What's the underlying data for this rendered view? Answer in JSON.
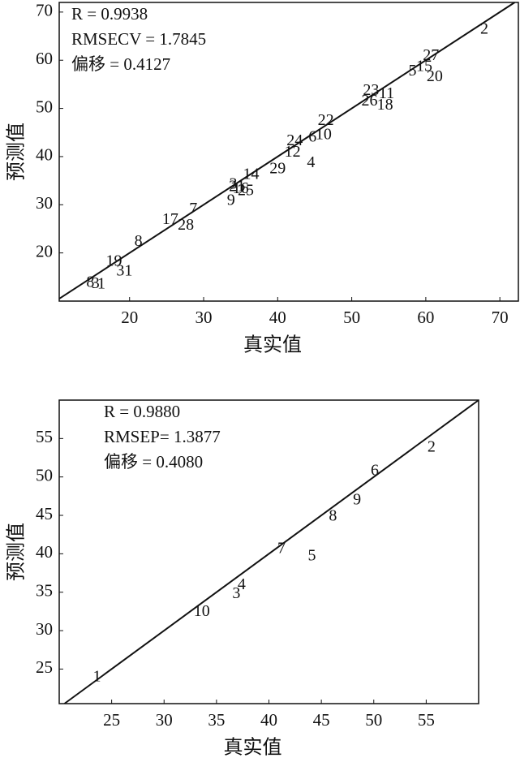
{
  "chart_data": [
    {
      "type": "scatter",
      "xlabel": "真实值",
      "ylabel": "预测值",
      "annotations": [
        "R = 0.9938",
        "RMSECV = 1.7845",
        "偏移 = 0.4127"
      ],
      "xlim": [
        10.5,
        72.5
      ],
      "ylim": [
        10,
        72
      ],
      "xticks": [
        20,
        30,
        40,
        50,
        60,
        70
      ],
      "yticks": [
        20,
        30,
        40,
        50,
        60,
        70
      ],
      "series": [
        {
          "color": "#111",
          "labels": [
            "2",
            "27",
            "15",
            "5",
            "20",
            "23",
            "11",
            "26",
            "18",
            "22",
            "10",
            "6",
            "24",
            "12",
            "4",
            "29",
            "14",
            "3",
            "21",
            "16",
            "25",
            "9",
            "7",
            "17",
            "28",
            "8",
            "19",
            "31",
            "8",
            "3",
            "1"
          ],
          "x": [
            67.9,
            60.7,
            59.8,
            58.2,
            61.2,
            52.6,
            54.7,
            52.4,
            54.5,
            46.5,
            46.2,
            44.7,
            42.3,
            42.0,
            44.5,
            40.0,
            36.4,
            34.0,
            34.5,
            35.0,
            35.7,
            33.7,
            28.6,
            25.5,
            27.6,
            21.2,
            17.9,
            19.3,
            14.7,
            15.4,
            16.2
          ],
          "values": [
            66.3,
            60.8,
            58.5,
            57.6,
            56.4,
            53.6,
            52.9,
            51.4,
            50.5,
            47.3,
            44.4,
            43.9,
            43.1,
            40.8,
            38.6,
            37.3,
            36.1,
            34.1,
            33.6,
            33.2,
            32.8,
            30.7,
            29.0,
            26.8,
            25.6,
            22.2,
            18.1,
            16.1,
            13.7,
            13.5,
            13.4
          ]
        }
      ]
    },
    {
      "type": "scatter",
      "xlabel": "真实值",
      "ylabel": "预测值",
      "annotations": [
        "R = 0.9880",
        "RMSEP= 1.3877",
        "偏移 = 0.4080"
      ],
      "xlim": [
        20,
        60
      ],
      "ylim": [
        20.5,
        60
      ],
      "xticks": [
        25,
        30,
        35,
        40,
        45,
        50,
        55
      ],
      "yticks": [
        25,
        30,
        35,
        40,
        45,
        50,
        55
      ],
      "series": [
        {
          "color": "#111",
          "labels": [
            "2",
            "6",
            "9",
            "8",
            "7",
            "5",
            "4",
            "3",
            "10",
            "1"
          ],
          "x": [
            55.5,
            50.1,
            48.4,
            46.1,
            41.2,
            44.1,
            37.4,
            36.9,
            33.6,
            23.6
          ],
          "values": [
            53.8,
            50.7,
            46.9,
            44.8,
            40.6,
            39.6,
            35.9,
            34.7,
            32.4,
            23.9
          ]
        }
      ]
    }
  ]
}
